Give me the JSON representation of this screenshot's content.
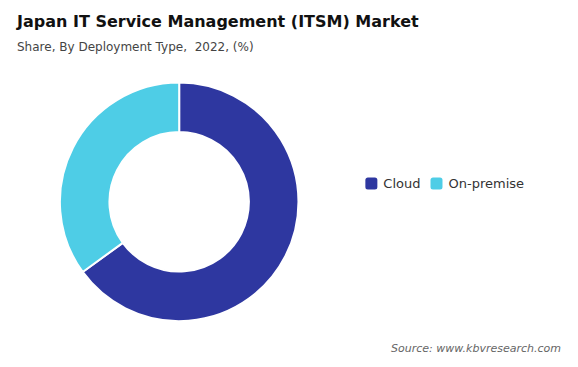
{
  "chart_data": {
    "type": "pie",
    "title": "Japan IT Service Management (ITSM) Market",
    "subtitle": "Share, By Deployment Type,  2022, (%)",
    "annotations": [
      "Source: www.kbvresearch.com"
    ],
    "categories": [
      "Cloud",
      "On-premise"
    ],
    "values": [
      65,
      35
    ],
    "colors": [
      "#2e37a0",
      "#4ecde6"
    ],
    "legend": "right"
  }
}
